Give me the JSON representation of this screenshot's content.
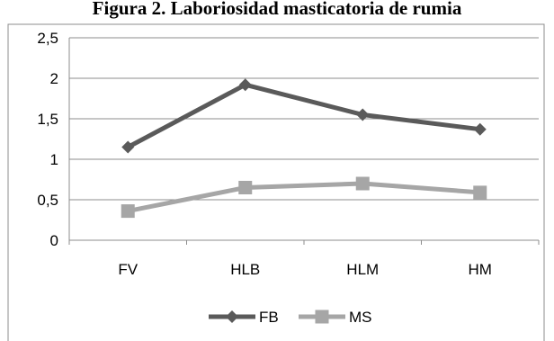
{
  "chart_data": {
    "type": "line",
    "title": "Figura 2. Laboriosidad masticatoria de rumia",
    "categories": [
      "FV",
      "HLB",
      "HLM",
      "HM"
    ],
    "ylim": [
      0,
      2.5
    ],
    "yticks": [
      "0",
      "0,5",
      "1",
      "1,5",
      "2",
      "2,5"
    ],
    "grid": true,
    "legend_position": "bottom",
    "series": [
      {
        "name": "FB",
        "values": [
          1.15,
          1.92,
          1.55,
          1.37
        ],
        "color": "#5a5a5a",
        "marker": "diamond"
      },
      {
        "name": "MS",
        "values": [
          0.36,
          0.65,
          0.7,
          0.59
        ],
        "color": "#a6a6a6",
        "marker": "square"
      }
    ]
  }
}
